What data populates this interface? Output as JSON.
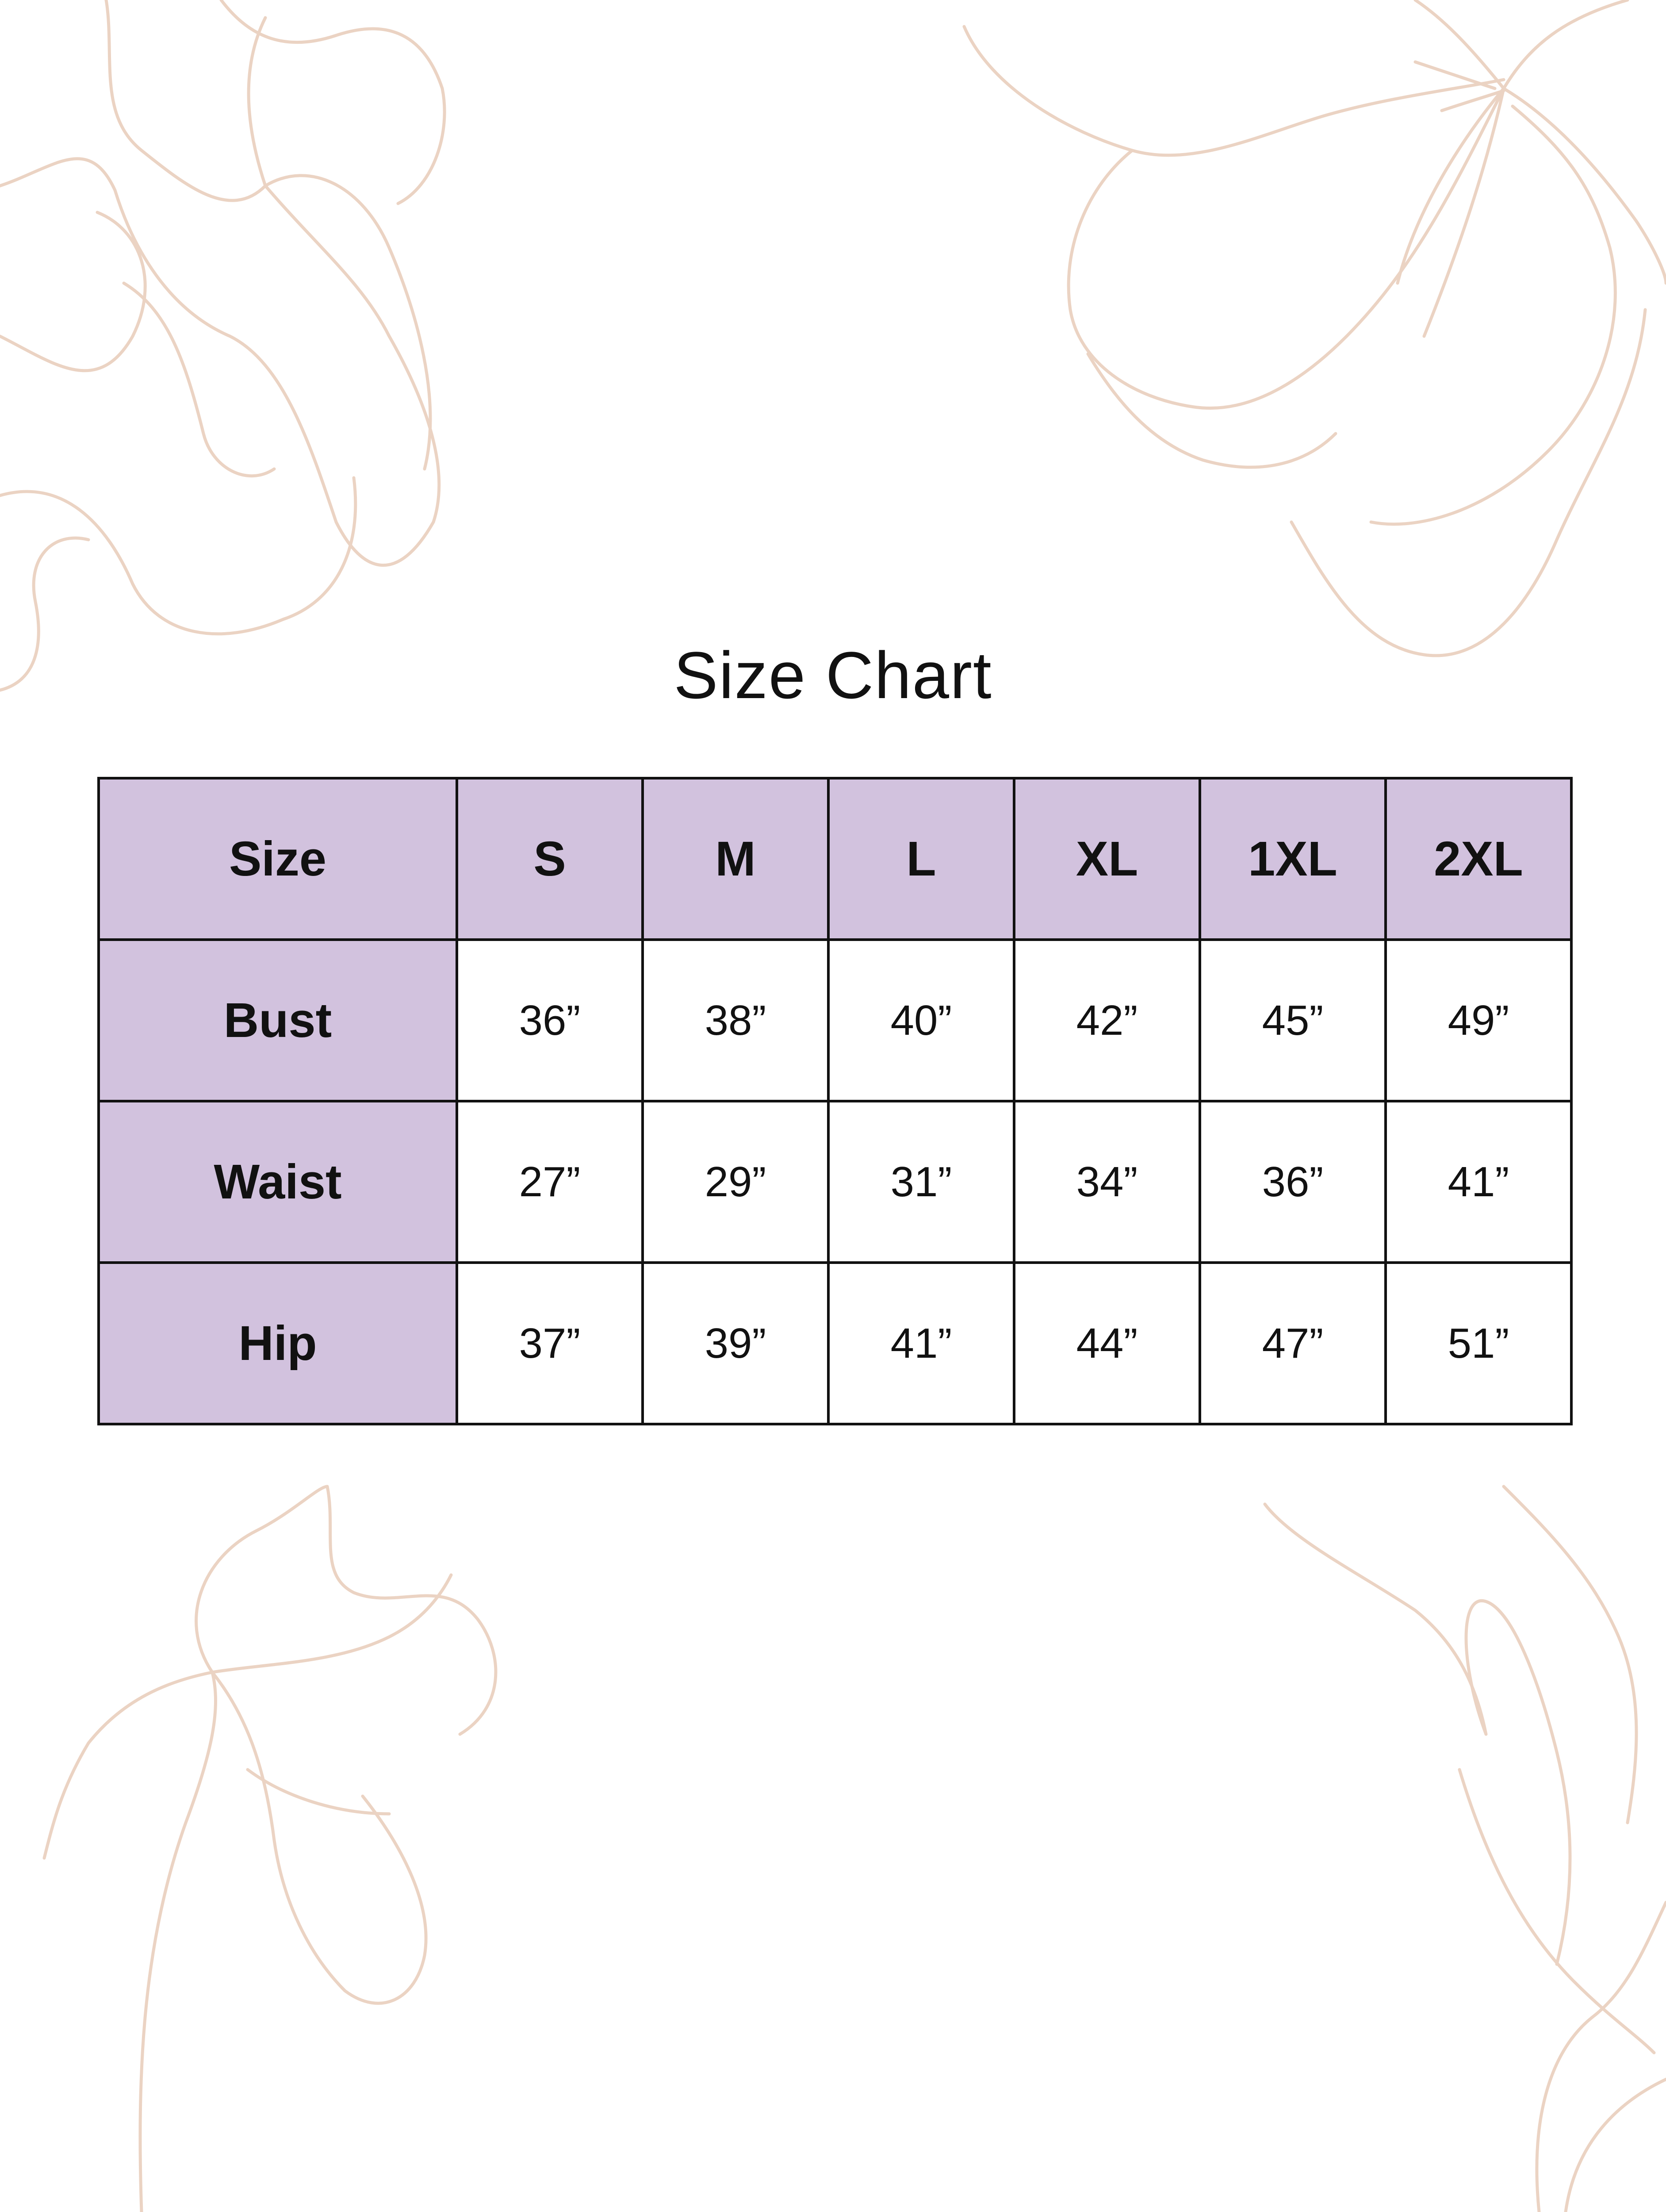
{
  "title": "Size Chart",
  "colors": {
    "header_fill": "#d2c2de",
    "border": "#111111",
    "floral_line": "#ebd3c3"
  },
  "decoration": "floral-line-art",
  "table": {
    "columns": [
      "Size",
      "S",
      "M",
      "L",
      "XL",
      "1XL",
      "2XL"
    ],
    "rows": [
      {
        "label": "Bust",
        "values": [
          "36”",
          "38”",
          "40”",
          "42”",
          "45”",
          "49”"
        ]
      },
      {
        "label": "Waist",
        "values": [
          "27”",
          "29”",
          "31”",
          "34”",
          "36”",
          "41”"
        ]
      },
      {
        "label": "Hip",
        "values": [
          "37”",
          "39”",
          "41”",
          "44”",
          "47”",
          "51”"
        ]
      }
    ]
  }
}
